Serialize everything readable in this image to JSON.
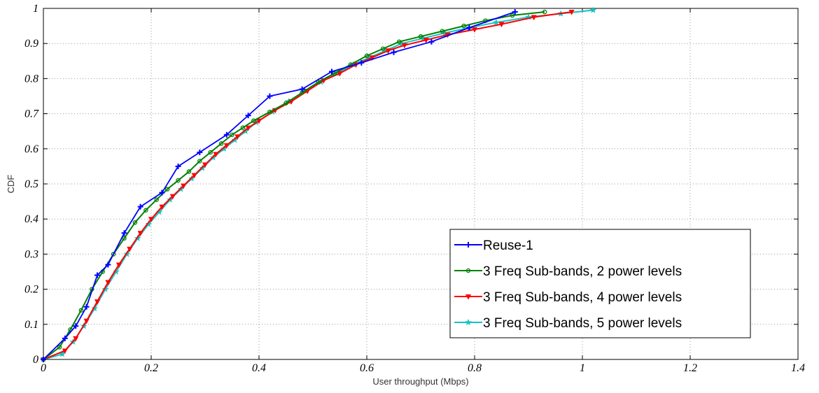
{
  "chart_data": {
    "type": "line",
    "title": "",
    "xlabel": "User throughput (Mbps)",
    "ylabel": "CDF",
    "xlim": [
      0,
      1.4
    ],
    "ylim": [
      0,
      1
    ],
    "xticks": [
      "0",
      "0.2",
      "0.4",
      "0.6",
      "0.8",
      "1",
      "1.2",
      "1.4"
    ],
    "yticks": [
      "0",
      "0.1",
      "0.2",
      "0.3",
      "0.4",
      "0.5",
      "0.6",
      "0.7",
      "0.8",
      "0.9",
      "1"
    ],
    "grid": true,
    "legend_position": "lower-right",
    "series": [
      {
        "name": "Reuse-1",
        "color": "#0000ff",
        "marker": "plus",
        "x": [
          0,
          0.04,
          0.06,
          0.08,
          0.1,
          0.12,
          0.15,
          0.18,
          0.22,
          0.25,
          0.29,
          0.34,
          0.38,
          0.42,
          0.48,
          0.535,
          0.59,
          0.65,
          0.72,
          0.79,
          0.875
        ],
        "y": [
          0,
          0.06,
          0.095,
          0.15,
          0.24,
          0.27,
          0.36,
          0.435,
          0.475,
          0.55,
          0.59,
          0.64,
          0.695,
          0.75,
          0.77,
          0.82,
          0.845,
          0.875,
          0.905,
          0.945,
          0.99
        ]
      },
      {
        "name": "3 Freq Sub-bands, 2 power levels",
        "color": "#008000",
        "marker": "circle",
        "x": [
          0,
          0.03,
          0.05,
          0.07,
          0.09,
          0.11,
          0.13,
          0.15,
          0.17,
          0.19,
          0.21,
          0.23,
          0.25,
          0.27,
          0.29,
          0.31,
          0.33,
          0.35,
          0.37,
          0.39,
          0.42,
          0.45,
          0.48,
          0.51,
          0.54,
          0.57,
          0.6,
          0.63,
          0.66,
          0.7,
          0.74,
          0.78,
          0.82,
          0.87,
          0.93
        ],
        "y": [
          0,
          0.035,
          0.085,
          0.14,
          0.2,
          0.25,
          0.3,
          0.345,
          0.39,
          0.425,
          0.455,
          0.485,
          0.51,
          0.535,
          0.565,
          0.59,
          0.615,
          0.64,
          0.66,
          0.68,
          0.705,
          0.73,
          0.76,
          0.79,
          0.815,
          0.84,
          0.865,
          0.885,
          0.905,
          0.92,
          0.935,
          0.95,
          0.965,
          0.98,
          0.99
        ]
      },
      {
        "name": "3 Freq Sub-bands, 4 power levels",
        "color": "#ff0000",
        "marker": "triangle",
        "x": [
          0,
          0.04,
          0.06,
          0.08,
          0.1,
          0.12,
          0.14,
          0.16,
          0.18,
          0.2,
          0.22,
          0.24,
          0.26,
          0.28,
          0.3,
          0.32,
          0.34,
          0.36,
          0.38,
          0.4,
          0.43,
          0.46,
          0.49,
          0.52,
          0.55,
          0.58,
          0.61,
          0.64,
          0.67,
          0.71,
          0.75,
          0.8,
          0.85,
          0.91,
          0.98
        ],
        "y": [
          0,
          0.025,
          0.06,
          0.11,
          0.165,
          0.22,
          0.27,
          0.315,
          0.36,
          0.4,
          0.435,
          0.465,
          0.495,
          0.525,
          0.555,
          0.585,
          0.61,
          0.635,
          0.66,
          0.68,
          0.71,
          0.735,
          0.765,
          0.795,
          0.815,
          0.84,
          0.86,
          0.88,
          0.895,
          0.91,
          0.925,
          0.94,
          0.955,
          0.975,
          0.99
        ]
      },
      {
        "name": "3 Freq Sub-bands, 5 power levels",
        "color": "#17c2c2",
        "marker": "star",
        "x": [
          0,
          0.035,
          0.055,
          0.075,
          0.095,
          0.115,
          0.135,
          0.155,
          0.175,
          0.195,
          0.215,
          0.235,
          0.255,
          0.275,
          0.295,
          0.315,
          0.335,
          0.355,
          0.375,
          0.395,
          0.425,
          0.455,
          0.485,
          0.515,
          0.545,
          0.575,
          0.605,
          0.635,
          0.665,
          0.705,
          0.745,
          0.79,
          0.84,
          0.9,
          0.96,
          1.02
        ],
        "y": [
          0,
          0.015,
          0.05,
          0.095,
          0.145,
          0.2,
          0.25,
          0.3,
          0.345,
          0.385,
          0.42,
          0.455,
          0.485,
          0.515,
          0.545,
          0.575,
          0.6,
          0.625,
          0.65,
          0.675,
          0.705,
          0.735,
          0.765,
          0.79,
          0.815,
          0.84,
          0.86,
          0.88,
          0.9,
          0.915,
          0.93,
          0.945,
          0.96,
          0.975,
          0.985,
          0.995
        ]
      }
    ]
  }
}
